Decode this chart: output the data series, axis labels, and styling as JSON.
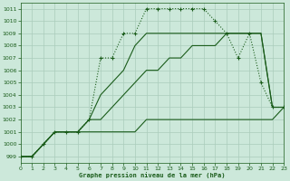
{
  "title": "Graphe pression niveau de la mer (hPa)",
  "background_color": "#cce8da",
  "grid_color": "#aaccbb",
  "line_color": "#1a5c1a",
  "xlim": [
    0,
    23
  ],
  "ylim": [
    998.5,
    1011.5
  ],
  "yticks": [
    999,
    1000,
    1001,
    1002,
    1003,
    1004,
    1005,
    1006,
    1007,
    1008,
    1009,
    1010,
    1011
  ],
  "xticks": [
    0,
    1,
    2,
    3,
    4,
    5,
    6,
    7,
    8,
    9,
    10,
    11,
    12,
    13,
    14,
    15,
    16,
    17,
    18,
    19,
    20,
    21,
    22,
    23
  ],
  "series": [
    {
      "x": [
        0,
        1,
        2,
        3,
        4,
        5,
        6,
        7,
        8,
        9,
        10,
        11,
        12,
        13,
        14,
        15,
        16,
        17,
        18,
        19,
        20,
        21,
        22,
        23
      ],
      "y": [
        999,
        999,
        1000,
        1001,
        1001,
        1001,
        1002,
        1007,
        1007,
        1009,
        1009,
        1011,
        1011,
        1011,
        1011,
        1011,
        1011,
        1010,
        1009,
        1007,
        1009,
        1005,
        1003,
        1003
      ],
      "linestyle": ":",
      "marker": "+",
      "markersize": 3.5,
      "markeredgewidth": 0.8,
      "linewidth": 0.8
    },
    {
      "x": [
        0,
        1,
        2,
        3,
        4,
        5,
        6,
        7,
        8,
        9,
        10,
        11,
        12,
        13,
        14,
        15,
        16,
        17,
        18,
        19,
        20,
        21,
        22,
        23
      ],
      "y": [
        999,
        999,
        1000,
        1001,
        1001,
        1001,
        1002,
        1004,
        1005,
        1006,
        1008,
        1009,
        1009,
        1009,
        1009,
        1009,
        1009,
        1009,
        1009,
        1009,
        1009,
        1009,
        1003,
        1003
      ],
      "linestyle": "-",
      "marker": null,
      "markersize": 0,
      "markeredgewidth": 0,
      "linewidth": 0.8
    },
    {
      "x": [
        0,
        1,
        2,
        3,
        4,
        5,
        6,
        7,
        8,
        9,
        10,
        11,
        12,
        13,
        14,
        15,
        16,
        17,
        18,
        19,
        20,
        21,
        22,
        23
      ],
      "y": [
        999,
        999,
        1000,
        1001,
        1001,
        1001,
        1001,
        1001,
        1001,
        1001,
        1001,
        1002,
        1002,
        1002,
        1002,
        1002,
        1002,
        1002,
        1002,
        1002,
        1002,
        1002,
        1002,
        1003
      ],
      "linestyle": "-",
      "marker": null,
      "markersize": 0,
      "markeredgewidth": 0,
      "linewidth": 0.8
    },
    {
      "x": [
        0,
        1,
        2,
        3,
        4,
        5,
        6,
        7,
        8,
        9,
        10,
        11,
        12,
        13,
        14,
        15,
        16,
        17,
        18,
        19,
        20,
        21,
        22,
        23
      ],
      "y": [
        999,
        999,
        1000,
        1001,
        1001,
        1001,
        1002,
        1002,
        1003,
        1004,
        1005,
        1006,
        1006,
        1007,
        1007,
        1008,
        1008,
        1008,
        1009,
        1009,
        1009,
        1009,
        1003,
        1003
      ],
      "linestyle": "-",
      "marker": null,
      "markersize": 0,
      "markeredgewidth": 0,
      "linewidth": 0.8
    }
  ]
}
